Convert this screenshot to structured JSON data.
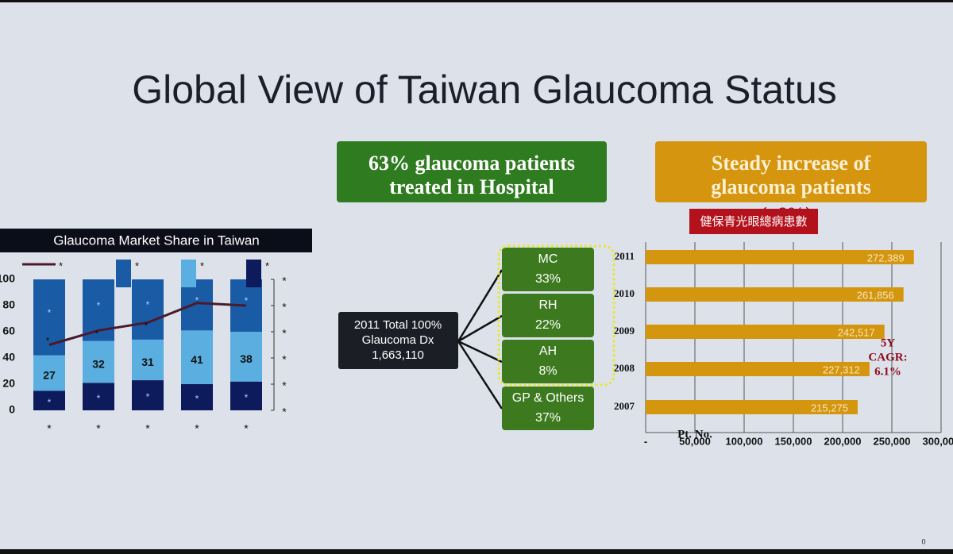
{
  "title": "Global View of Taiwan Glaucoma Status",
  "callouts": [
    {
      "lines": [
        "63% glaucoma patients",
        "treated in Hospital"
      ],
      "color": "#2f7b20"
    },
    {
      "lines": [
        "Steady increase of",
        "glaucoma patients"
      ],
      "color": "#d6950f"
    }
  ],
  "tree": {
    "root": [
      "2011 Total 100%",
      "Glaucoma Dx",
      "1,663,110"
    ],
    "children": [
      {
        "label": "MC",
        "share": "33%"
      },
      {
        "label": "RH",
        "share": "22%"
      },
      {
        "label": "AH",
        "share": "8%"
      },
      {
        "label": "GP & Others",
        "share": "37%"
      }
    ]
  },
  "slide_number": "0",
  "chart_data": [
    {
      "type": "stacked_bar_line",
      "title": "Glaucoma Market Share in Taiwan",
      "categories": [
        "*",
        "*",
        "*",
        "*",
        "*"
      ],
      "ylim": [
        0,
        100
      ],
      "yticks": [
        0,
        20,
        40,
        60,
        80,
        100
      ],
      "y2lim": [
        0,
        100
      ],
      "y2ticks": [
        {
          "value": 0,
          "label": "*"
        },
        {
          "value": 20,
          "label": "*"
        },
        {
          "value": 40,
          "label": "*"
        },
        {
          "value": 60,
          "label": "*"
        },
        {
          "value": 80,
          "label": "*"
        },
        {
          "value": 100,
          "label": "*"
        }
      ],
      "series": [
        {
          "name": "*",
          "color": "#0d1b5c",
          "values": [
            15,
            21,
            23,
            20,
            22
          ],
          "value_labels": [
            "*",
            "*",
            "*",
            "*",
            "*"
          ]
        },
        {
          "name": "*",
          "color": "#5aaee0",
          "values": [
            27,
            32,
            31,
            41,
            38
          ]
        },
        {
          "name": "*",
          "color": "#1a5ba6",
          "values": [
            58,
            47,
            46,
            39,
            40
          ],
          "value_labels": [
            "*",
            "*",
            "*",
            "*",
            "*"
          ]
        },
        {
          "name": "*",
          "type": "line",
          "color": "#4a1a2c",
          "values": [
            50,
            61,
            67,
            82,
            80
          ],
          "value_labels": [
            "*",
            "*",
            "*",
            null,
            null
          ]
        }
      ]
    },
    {
      "type": "hbar",
      "categories": [
        "2011",
        "2010",
        "2009",
        "2008",
        "2007"
      ],
      "values": [
        272389,
        261856,
        242517,
        227312,
        215275
      ],
      "value_labels": [
        "272,389",
        "261,856",
        "242,517",
        "227,312",
        "215,275"
      ],
      "color": "#d4950f",
      "xlim": [
        0,
        300000
      ],
      "xticks": [
        {
          "value": 0,
          "label": "-"
        },
        {
          "value": 50000,
          "label": "50,000"
        },
        {
          "value": 100000,
          "label": "100,000"
        },
        {
          "value": 150000,
          "label": "150,000"
        },
        {
          "value": 200000,
          "label": "200,000"
        },
        {
          "value": 250000,
          "label": "250,000"
        },
        {
          "value": 300000,
          "label": "300,000"
        }
      ],
      "grid": true,
      "xlabel": "Pt. No.",
      "badge": "健保青光眼總病患數",
      "hidden_note": "(~6%)",
      "annotation_lines": [
        "5Y",
        "CAGR:",
        "6.1%"
      ]
    }
  ]
}
